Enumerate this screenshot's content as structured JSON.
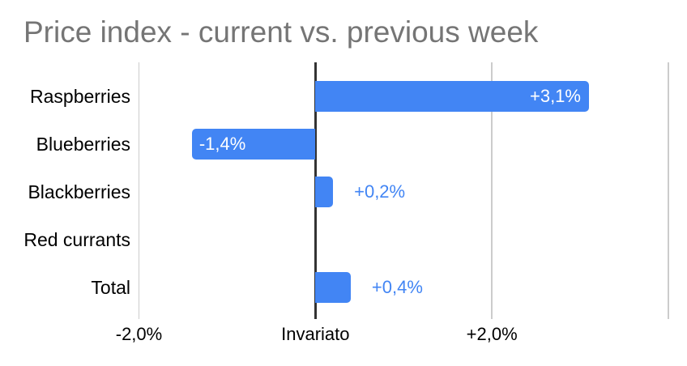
{
  "title": "Price index - current vs. previous week",
  "chart_data": {
    "type": "bar",
    "orientation": "horizontal",
    "title": "Price index - current vs. previous week",
    "xlabel": "",
    "ylabel": "",
    "categories": [
      "Raspberries",
      "Blueberries",
      "Blackberries",
      "Red currants",
      "Total"
    ],
    "values": [
      3.1,
      -1.4,
      0.2,
      0,
      0.4
    ],
    "data_labels": [
      "+3,1%",
      "-1,4%",
      "+0,2%",
      "",
      "+0,4%"
    ],
    "label_placement": [
      "inside",
      "inside",
      "outside",
      "none",
      "outside"
    ],
    "value_unit": "percent",
    "xlim": [
      -2,
      4
    ],
    "x_ticks": [
      {
        "value": -2,
        "label": "-2,0%"
      },
      {
        "value": 0,
        "label": "Invariato"
      },
      {
        "value": 2,
        "label": "+2,0%"
      },
      {
        "value": 4,
        "label": ""
      }
    ],
    "grid": true,
    "legend": "none"
  },
  "colors": {
    "background": "#ffffff",
    "bar": "#4285f4",
    "title": "#757575",
    "grid": "#cccccc",
    "baseline": "#333333",
    "category_text": "#000000",
    "axis_text": "#000000",
    "label_inside": "#ffffff",
    "label_outside": "#4285f4"
  }
}
